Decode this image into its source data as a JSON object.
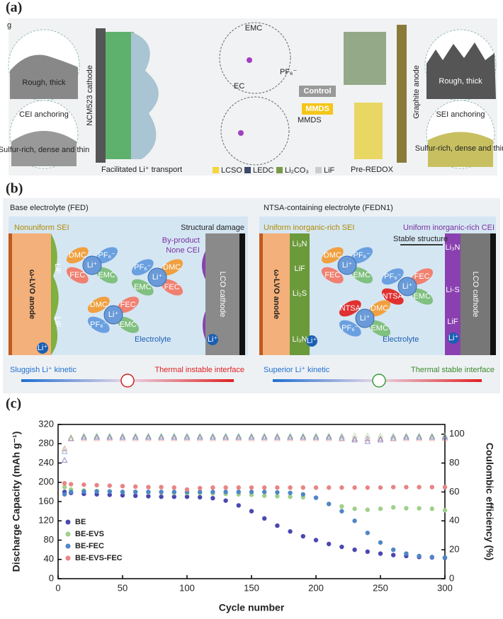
{
  "panels": {
    "a": {
      "label": "(a)",
      "sub": "g",
      "emc": "EMC",
      "pf6": "PF₆⁻",
      "ec": "EC",
      "control": "Control",
      "mmds_box": "MMDS",
      "mmds": "MMDS",
      "cathode": "NCM523 cathode",
      "anode": "Graphite anode",
      "rough_left": "Rough, thick",
      "rough_right": "Rough, thick",
      "cei": "CEI anchoring",
      "sei": "SEI anchoring",
      "dense_left": "Sulfur-rich, dense and thin",
      "dense_right": "Sulfur-rich, dense and thin",
      "transport": "Facilitated Li⁺ transport",
      "redox": "Pre-REDOX",
      "legend": [
        "LCSO",
        "LEDC",
        "Li₂CO₃",
        "LiF"
      ]
    },
    "b": {
      "label": "(b)",
      "left_title": "Base electrolyte (FED)",
      "right_title": "NTSA-containing electrolyte (FEDN1)",
      "nonuniform": "Nonuniform SEI",
      "damage": "Structural damage",
      "byproduct": "By-product",
      "nonecei": "None CEI",
      "anode": "ω-LVO anode",
      "cathode": "LCO cathode",
      "electrolyte": "Electrolyte",
      "sluggish": "Sluggish Li⁺ kinetic",
      "instable": "Thermal instable interface",
      "uniform_sei": "Uniform inorganic-rich SEI",
      "uniform_cei": "Uniform inorganic-rich CEI",
      "stable": "Stable structure",
      "superior": "Superior Li⁺ kinetic",
      "stable_if": "Thermal stable interface",
      "lif": "LiF",
      "li3n": "Li₃N",
      "li2s": "Li₂S",
      "lis": "Li-S",
      "lin": "Li₃N",
      "molecules": {
        "dmc": "DMC",
        "pf6": "PF₆⁻",
        "fec": "FEC",
        "emc": "EMC",
        "li": "Li⁺",
        "ntsa": "NTSA"
      }
    }
  },
  "chart_data": {
    "type": "scatter",
    "label": "(c)",
    "xlabel": "Cycle number",
    "ylabel": "Discharge Capacity (mAh g⁻¹)",
    "y2label": "Coulombic efficiency (%)",
    "xlim": [
      0,
      300
    ],
    "xticks": [
      0,
      50,
      100,
      150,
      200,
      250,
      300
    ],
    "ylim": [
      0,
      320
    ],
    "yticks": [
      0,
      40,
      80,
      120,
      160,
      200,
      240,
      280,
      320
    ],
    "y2lim": [
      0,
      106.7
    ],
    "y2ticks": [
      0,
      20,
      40,
      60,
      80,
      100
    ],
    "legend": "lower left",
    "x": [
      5,
      10,
      20,
      30,
      40,
      50,
      60,
      70,
      80,
      90,
      100,
      110,
      120,
      130,
      140,
      150,
      160,
      170,
      180,
      190,
      200,
      210,
      220,
      230,
      240,
      250,
      260,
      270,
      280,
      290,
      300
    ],
    "series": [
      {
        "name": "BE",
        "color": "#4b48b0",
        "values": [
          180,
          178,
          176,
          175,
          174,
          173,
          172,
          171,
          170,
          170,
          170,
          169,
          167,
          162,
          152,
          140,
          125,
          110,
          98,
          88,
          80,
          72,
          66,
          60,
          56,
          52,
          49,
          47,
          45,
          44,
          43
        ],
        "efficiency": [
          82,
          97,
          98,
          98,
          98,
          98,
          98,
          98,
          98,
          98,
          98,
          98,
          98,
          98,
          98,
          98,
          98,
          98,
          98,
          98,
          98,
          98,
          97,
          96,
          95,
          96,
          97,
          98,
          98,
          98,
          98
        ]
      },
      {
        "name": "BE-EVS",
        "color": "#9fd08a",
        "values": [
          190,
          185,
          183,
          182,
          181,
          180,
          180,
          179,
          179,
          178,
          178,
          178,
          177,
          176,
          175,
          174,
          172,
          171,
          170,
          169,
          168,
          155,
          150,
          145,
          143,
          145,
          148,
          146,
          146,
          145,
          142
        ],
        "efficiency": [
          90,
          98,
          99,
          99,
          99,
          99,
          99,
          99,
          99,
          99,
          99,
          99,
          99,
          99,
          99,
          99,
          99,
          99,
          99,
          99,
          99,
          99,
          99,
          99,
          99,
          99,
          99,
          99,
          99,
          99,
          99
        ]
      },
      {
        "name": "BE-FEC",
        "color": "#4f86c6",
        "values": [
          175,
          180,
          181,
          181,
          181,
          180,
          180,
          180,
          180,
          180,
          180,
          180,
          180,
          180,
          180,
          180,
          180,
          179,
          178,
          175,
          168,
          155,
          140,
          120,
          95,
          75,
          60,
          52,
          47,
          45,
          44
        ],
        "efficiency": [
          88,
          97,
          98,
          98,
          98,
          98,
          98,
          98,
          98,
          98,
          98,
          98,
          98,
          98,
          98,
          98,
          98,
          98,
          98,
          98,
          98,
          98,
          98,
          97,
          97,
          97,
          98,
          98,
          98,
          98,
          98
        ]
      },
      {
        "name": "BE-EVS-FEC",
        "color": "#e88484",
        "values": [
          198,
          196,
          195,
          194,
          193,
          192,
          191,
          190,
          190,
          189,
          185,
          188,
          189,
          189,
          189,
          189,
          189,
          189,
          189,
          189,
          189,
          189,
          189,
          189,
          189,
          189,
          190,
          190,
          190,
          190,
          190
        ],
        "efficiency": [
          90,
          97,
          97,
          97,
          97,
          97,
          97,
          97,
          97,
          97,
          97,
          97,
          97,
          97,
          97,
          97,
          97,
          97,
          97,
          97,
          97,
          97,
          97,
          97,
          97,
          97,
          97,
          97,
          97,
          97,
          97
        ]
      }
    ]
  }
}
